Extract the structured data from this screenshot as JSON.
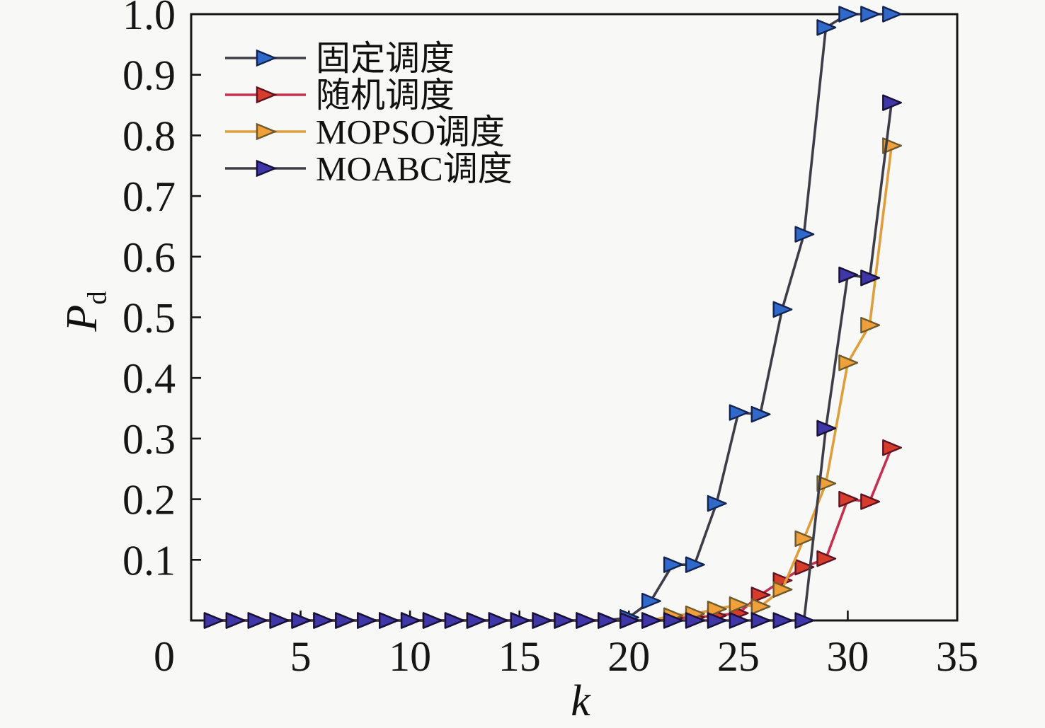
{
  "page": {
    "background": "#f8f8f6",
    "axis_color": "#161616"
  },
  "chart_data": {
    "type": "line",
    "title": "",
    "xlabel": "k",
    "ylabel": "P",
    "ylabel_sub": "d",
    "xlim": [
      0,
      35
    ],
    "ylim": [
      0,
      1.0
    ],
    "grid": false,
    "legend_position": "top-left",
    "origin_label": "0",
    "x_ticks": [
      5,
      10,
      15,
      20,
      25,
      30,
      35
    ],
    "x_tick_labels": [
      "5",
      "10",
      "15",
      "20",
      "25",
      "30",
      "35"
    ],
    "y_ticks": [
      0.1,
      0.2,
      0.3,
      0.4,
      0.5,
      0.6,
      0.7,
      0.8,
      0.9,
      1.0
    ],
    "y_tick_labels": [
      "0.1",
      "0.2",
      "0.3",
      "0.4",
      "0.5",
      "0.6",
      "0.7",
      "0.8",
      "0.9",
      "1.0"
    ],
    "x": [
      1,
      2,
      3,
      4,
      5,
      6,
      7,
      8,
      9,
      10,
      11,
      12,
      13,
      14,
      15,
      16,
      17,
      18,
      19,
      20,
      21,
      22,
      23,
      24,
      25,
      26,
      27,
      28,
      29,
      30,
      31,
      32
    ],
    "series": [
      {
        "key": "fixed-scheduling",
        "name": "固定调度",
        "marker": "right-triangle",
        "line_color": "#3e3d47",
        "marker_fill": "#3069c9",
        "marker_edge": "#13234f",
        "values": [
          0,
          0,
          0,
          0,
          0,
          0,
          0,
          0,
          0,
          0,
          0,
          0,
          0,
          0,
          0,
          0,
          0,
          0,
          0,
          0.005,
          0.032,
          0.092,
          0.092,
          0.193,
          0.343,
          0.34,
          0.513,
          0.637,
          0.978,
          1,
          1,
          1
        ]
      },
      {
        "key": "random-scheduling",
        "name": "随机调度",
        "marker": "right-triangle",
        "line_color": "#c3314e",
        "marker_fill": "#d63c2a",
        "marker_edge": "#5e1322",
        "values": [
          0,
          0,
          0,
          0,
          0,
          0,
          0,
          0,
          0,
          0,
          0,
          0,
          0,
          0,
          0,
          0,
          0,
          0,
          0,
          0,
          0,
          0.004,
          0.005,
          0.008,
          0.012,
          0.042,
          0.066,
          0.088,
          0.102,
          0.2,
          0.196,
          0.285
        ]
      },
      {
        "key": "mopso-scheduling",
        "name": "MOPSO调度",
        "marker": "right-triangle",
        "line_color": "#de9e3d",
        "marker_fill": "#f0a03a",
        "marker_edge": "#6d5a2e",
        "values": [
          0,
          0,
          0,
          0,
          0,
          0,
          0,
          0,
          0,
          0,
          0,
          0,
          0,
          0,
          0,
          0,
          0,
          0,
          0,
          0,
          0,
          0.008,
          0.011,
          0.019,
          0.026,
          0.023,
          0.051,
          0.135,
          0.226,
          0.425,
          0.487,
          0.783
        ]
      },
      {
        "key": "moabc-scheduling",
        "name": "MOABC调度",
        "marker": "right-triangle",
        "line_color": "#3e3d47",
        "marker_fill": "#3f36a8",
        "marker_edge": "#181037",
        "values": [
          0,
          0,
          0,
          0,
          0,
          0,
          0,
          0,
          0,
          0,
          0,
          0,
          0,
          0,
          0,
          0,
          0,
          0,
          0,
          0,
          0,
          0,
          0,
          0,
          0,
          0,
          0,
          0,
          0.317,
          0.57,
          0.565,
          0.854
        ]
      }
    ]
  }
}
